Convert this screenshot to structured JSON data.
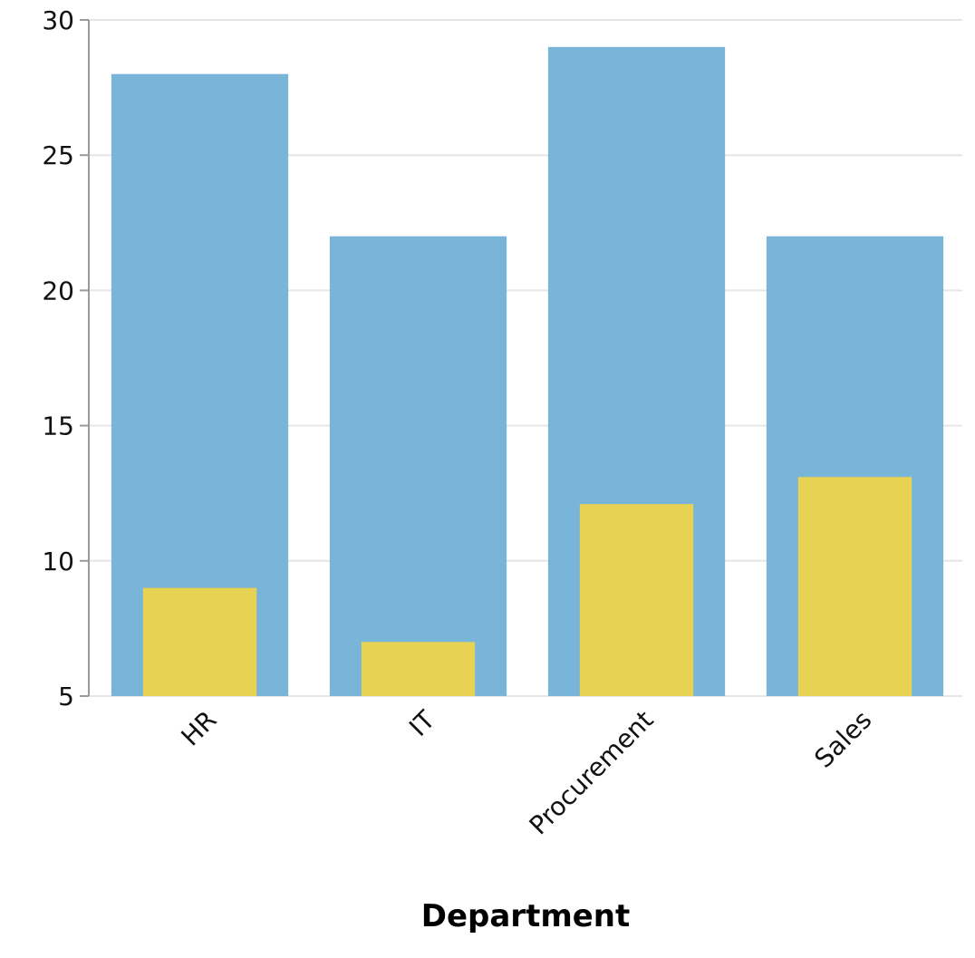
{
  "chart_data": {
    "type": "bar",
    "layout": "overlapped",
    "categories": [
      "HR",
      "IT",
      "Procurement",
      "Sales"
    ],
    "series": [
      {
        "color": "#79b5d9",
        "values": [
          28,
          22,
          29,
          22
        ]
      },
      {
        "color": "#e8d253",
        "values": [
          9,
          7,
          12.1,
          13.1
        ]
      }
    ],
    "title": "",
    "xlabel": "Department",
    "ylabel": "",
    "ylim": [
      5,
      30
    ],
    "yticks": [
      5,
      10,
      15,
      20,
      25,
      30
    ],
    "grid": true,
    "legend": "none"
  }
}
